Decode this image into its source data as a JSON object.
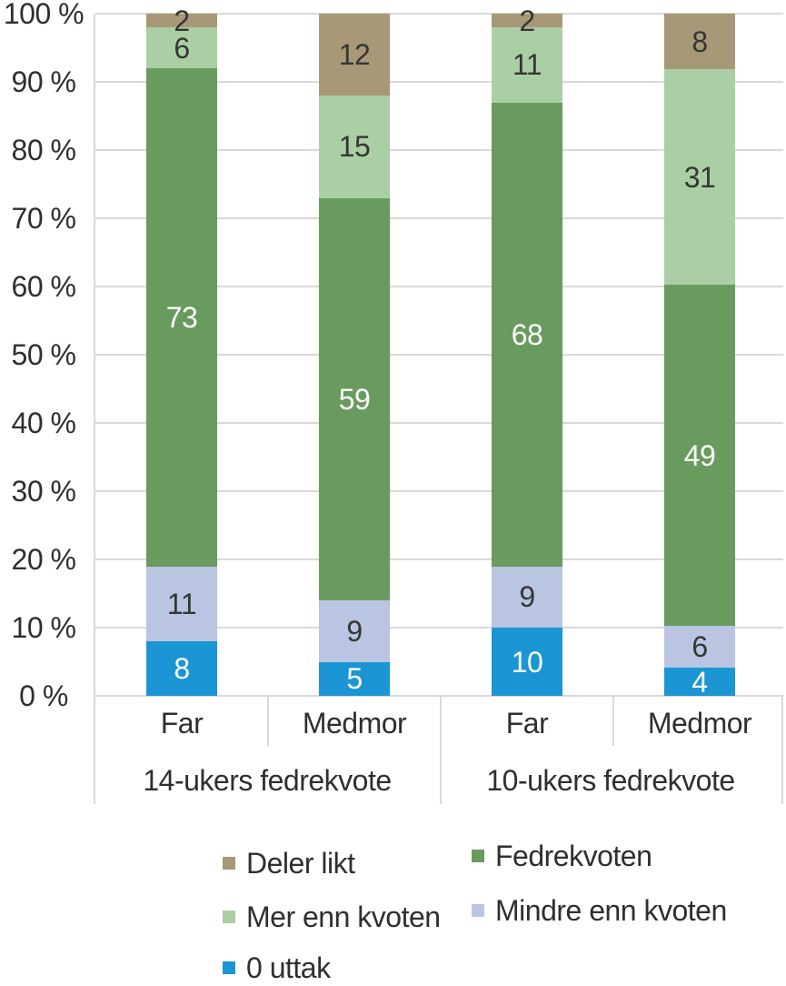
{
  "chart_data": {
    "type": "bar",
    "variant": "stacked-100",
    "title": "",
    "y_axis": {
      "min": 0,
      "max": 100,
      "step": 10,
      "tick_labels": [
        "0 %",
        "10 %",
        "20 %",
        "30 %",
        "40 %",
        "50 %",
        "60 %",
        "70 %",
        "80 %",
        "90 %",
        "100 %"
      ],
      "grid": true
    },
    "gridline_color": "#d9d9d9",
    "text_color": "#2f2f2c",
    "stack_order": [
      "0 uttak",
      "Mindre enn kvoten",
      "Fedrekvoten",
      "Mer enn kvoten",
      "Deler likt"
    ],
    "series_styles": {
      "0 uttak": {
        "color": "#1b95d3",
        "label_color": "#ffffff"
      },
      "Mindre enn kvoten": {
        "color": "#b9c5e1",
        "label_color": "#363633"
      },
      "Fedrekvoten": {
        "color": "#699a5e",
        "label_color": "#ffffff"
      },
      "Mer enn kvoten": {
        "color": "#abcfa4",
        "label_color": "#363633"
      },
      "Deler likt": {
        "color": "#a79877",
        "label_color": "#363633"
      }
    },
    "groups": [
      {
        "label": "14-ukers fedrekvote",
        "bars": [
          {
            "label": "Far",
            "values": {
              "0 uttak": 8,
              "Mindre enn kvoten": 11,
              "Fedrekvoten": 73,
              "Mer enn kvoten": 6,
              "Deler likt": 2
            }
          },
          {
            "label": "Medmor",
            "values": {
              "0 uttak": 5,
              "Mindre enn kvoten": 9,
              "Fedrekvoten": 59,
              "Mer enn kvoten": 15,
              "Deler likt": 12
            }
          }
        ]
      },
      {
        "label": "10-ukers fedrekvote",
        "bars": [
          {
            "label": "Far",
            "values": {
              "0 uttak": 10,
              "Mindre enn kvoten": 9,
              "Fedrekvoten": 68,
              "Mer enn kvoten": 11,
              "Deler likt": 2
            }
          },
          {
            "label": "Medmor",
            "values": {
              "0 uttak": 4,
              "Mindre enn kvoten": 6,
              "Fedrekvoten": 49,
              "Mer enn kvoten": 31,
              "Deler likt": 8
            }
          }
        ]
      }
    ],
    "legend": {
      "position": "bottom",
      "columns": [
        [
          "Deler likt",
          "Mer enn kvoten",
          "0 uttak"
        ],
        [
          "Fedrekvoten",
          "Mindre enn kvoten"
        ]
      ]
    }
  }
}
